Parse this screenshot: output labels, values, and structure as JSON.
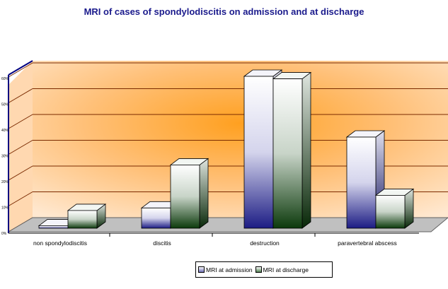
{
  "chart_data": {
    "type": "bar",
    "title": "MRI of cases of spondylodiscitis on admission and at discharge",
    "categories": [
      "non spondylodiscitis",
      "discitis",
      "destruction",
      "paravertebral abscess"
    ],
    "series": [
      {
        "name": "MRI at admission",
        "values": [
          1,
          8,
          60,
          36
        ]
      },
      {
        "name": "MRI at discharge",
        "values": [
          7,
          25,
          59,
          13
        ]
      }
    ],
    "ylim": [
      0,
      60
    ],
    "y_ticks": [
      "0%",
      "10%",
      "20%",
      "30%",
      "40%",
      "50%",
      "60%"
    ],
    "xlabel": "",
    "ylabel": "",
    "grid": true,
    "legend_position": "bottom",
    "colors": {
      "admission_top": "#ffffff",
      "admission_bottom": "#202088",
      "discharge_top": "#ffffff",
      "discharge_bottom": "#103e10",
      "wall_center": "#ffa226",
      "wall_edge": "#ffe0c0",
      "floor": "#c0c0c0",
      "axis": "#000080"
    }
  }
}
